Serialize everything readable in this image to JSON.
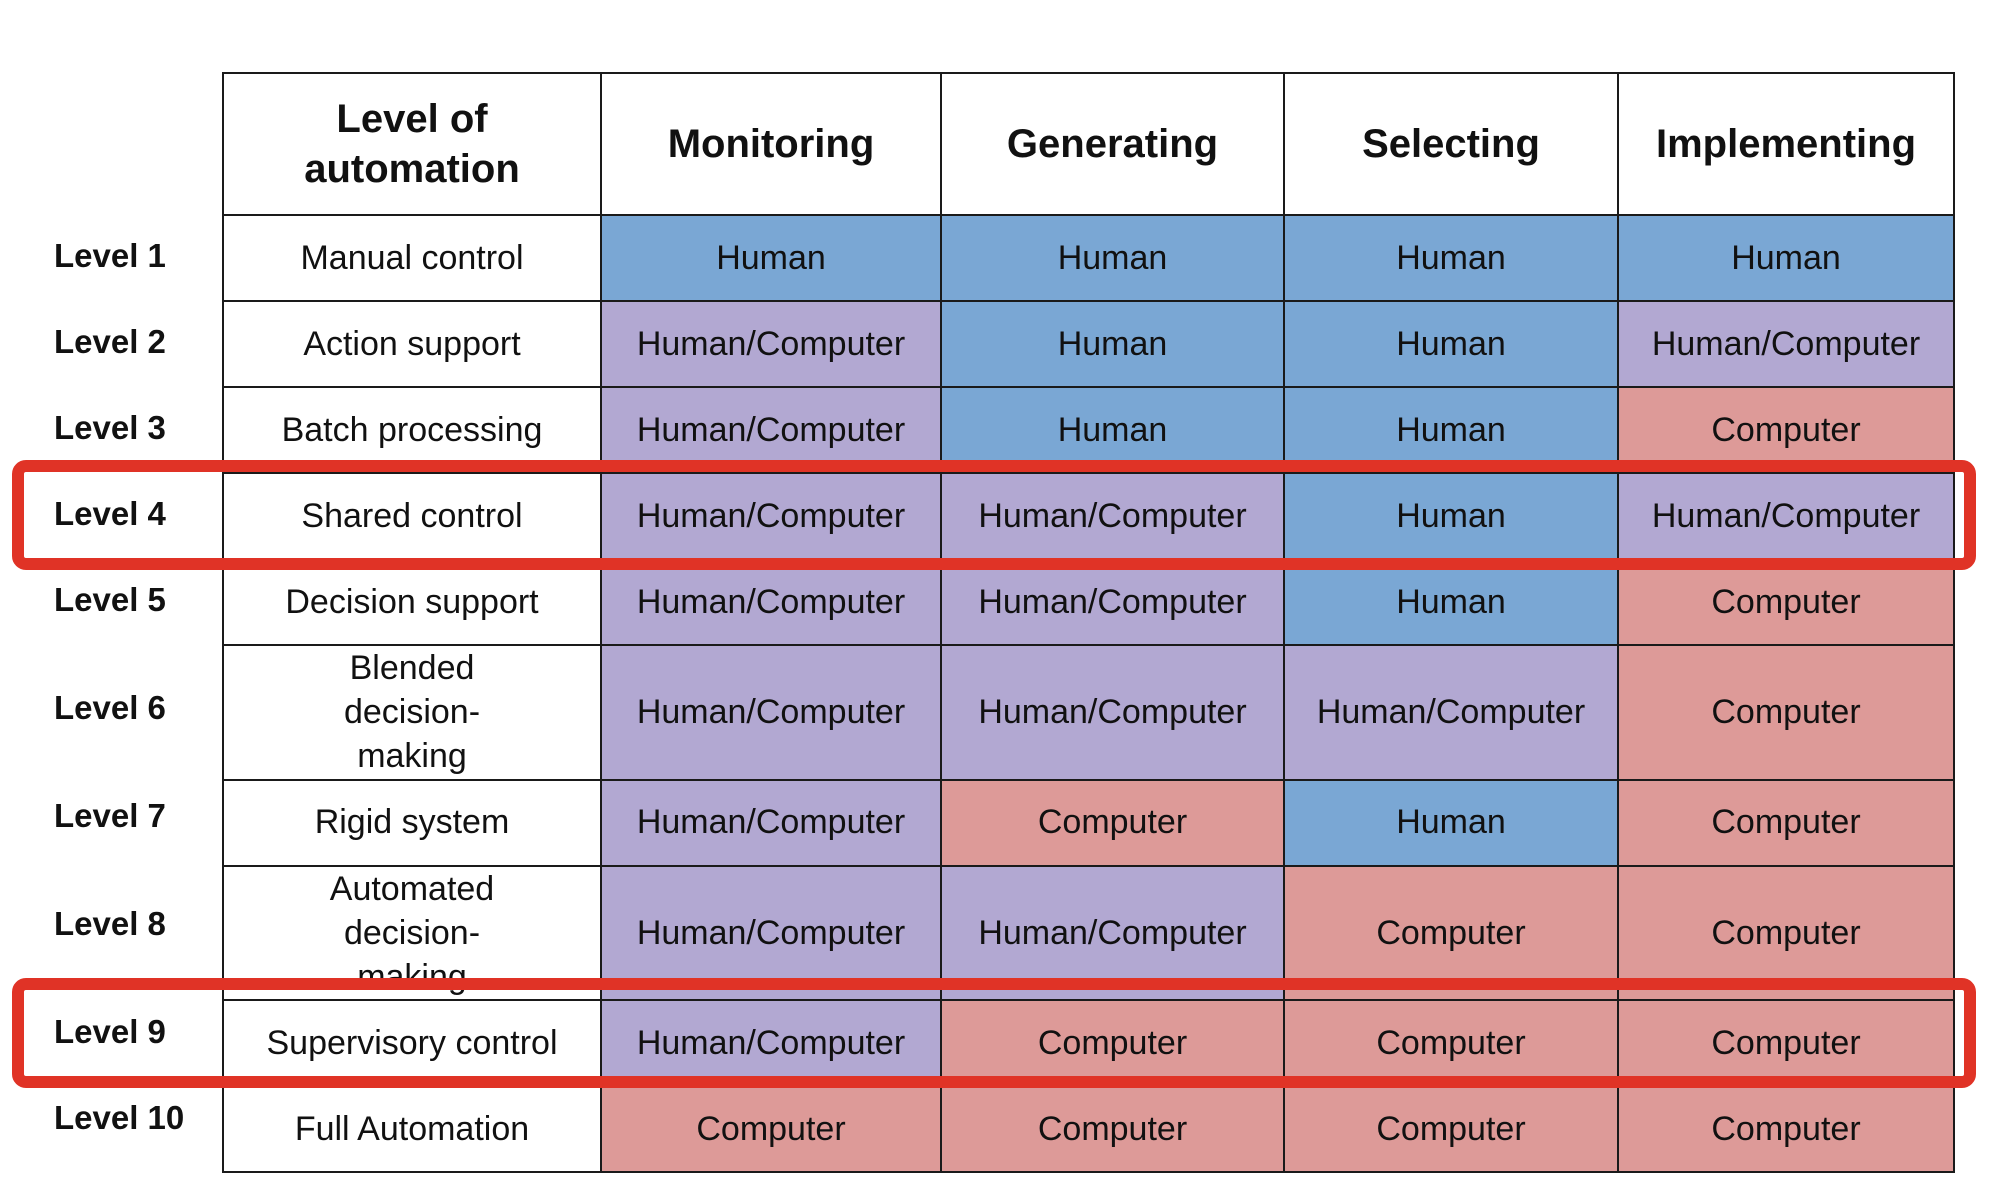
{
  "table": {
    "headers": [
      "Level of automation",
      "Monitoring",
      "Generating",
      "Selecting",
      "Implementing"
    ],
    "rows": [
      {
        "level": "Level 1",
        "name": "Manual control",
        "cells": [
          "Human",
          "Human",
          "Human",
          "Human"
        ]
      },
      {
        "level": "Level 2",
        "name": "Action support",
        "cells": [
          "Human/Computer",
          "Human",
          "Human",
          "Human/Computer"
        ]
      },
      {
        "level": "Level 3",
        "name": "Batch processing",
        "cells": [
          "Human/Computer",
          "Human",
          "Human",
          "Computer"
        ]
      },
      {
        "level": "Level 4",
        "name": "Shared control",
        "cells": [
          "Human/Computer",
          "Human/Computer",
          "Human",
          "Human/Computer"
        ]
      },
      {
        "level": "Level 5",
        "name": "Decision support",
        "cells": [
          "Human/Computer",
          "Human/Computer",
          "Human",
          "Computer"
        ]
      },
      {
        "level": "Level 6",
        "name": "Blended decision-making",
        "cells": [
          "Human/Computer",
          "Human/Computer",
          "Human/Computer",
          "Computer"
        ]
      },
      {
        "level": "Level 7",
        "name": "Rigid system",
        "cells": [
          "Human/Computer",
          "Computer",
          "Human",
          "Computer"
        ]
      },
      {
        "level": "Level 8",
        "name": "Automated decision-making",
        "cells": [
          "Human/Computer",
          "Human/Computer",
          "Computer",
          "Computer"
        ]
      },
      {
        "level": "Level 9",
        "name": "Supervisory control",
        "cells": [
          "Human/Computer",
          "Computer",
          "Computer",
          "Computer"
        ]
      },
      {
        "level": "Level 10",
        "name": "Full Automation",
        "cells": [
          "Computer",
          "Computer",
          "Computer",
          "Computer"
        ]
      }
    ]
  },
  "colors": {
    "Human": "#7aa7d4",
    "Human/Computer": "#b2a8d2",
    "Computer": "#dd9a98",
    "highlight": "#e03326"
  },
  "highlighted_levels": [
    "Level 4",
    "Level 9"
  ]
}
